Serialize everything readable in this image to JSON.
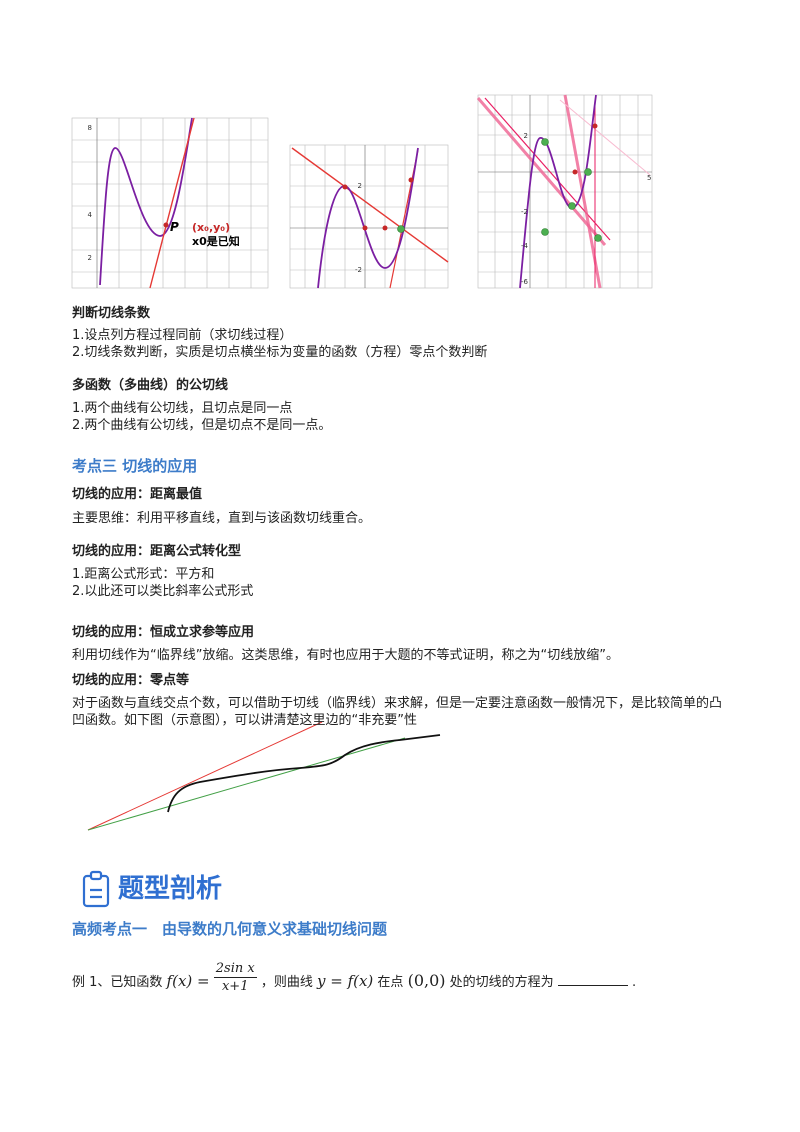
{
  "figures": {
    "fig1": {
      "ticks": [
        "8",
        "4",
        "2"
      ],
      "point": "P",
      "coord": "(x₀,y₀)",
      "note": "x0是已知"
    },
    "fig2": {
      "ticks": [
        "2",
        "-2"
      ]
    },
    "fig3": {
      "ticks": [
        "2",
        "-2",
        "-4",
        "-6",
        "5"
      ]
    }
  },
  "blocks": [
    {
      "heading": "判断切线条数",
      "lines": [
        "1.设点列方程过程同前（求切线过程）",
        "2.切线条数判断，实质是切点横坐标为变量的函数（方程）零点个数判断"
      ]
    },
    {
      "heading": "多函数（多曲线）的公切线",
      "lines": [
        "1.两个曲线有公切线，且切点是同一点",
        "2.两个曲线有公切线，但是切点不是同一点。"
      ]
    }
  ],
  "section": "考点三 切线的应用",
  "apps": [
    {
      "heading": "切线的应用：距离最值",
      "lines": [
        "主要思维：利用平移直线，直到与该函数切线重合。"
      ]
    },
    {
      "heading": "切线的应用：距离公式转化型",
      "lines": [
        "1.距离公式形式：平方和",
        "2.以此还可以类比斜率公式形式"
      ]
    },
    {
      "heading": "切线的应用：恒成立求参等应用",
      "lines": [
        "利用切线作为“临界线”放缩。这类思维，有时也应用于大题的不等式证明，称之为“切线放缩”。"
      ]
    },
    {
      "heading": "切线的应用：零点等",
      "lines": [
        "对于函数与直线交点个数，可以借助于切线（临界线）来求解，但是一定要注意函数一般情况下，是比较简单的凸凹函数。如下图（示意图），可以讲清楚这里边的“非充要”性"
      ]
    }
  ],
  "part_title": "题型剖析",
  "topic": "高频考点一　由导数的几何意义求基础切线问题",
  "example": {
    "prefix": "例 1、已知函数",
    "fx": "f(x) =",
    "num": "2sin x",
    "den": "x+1",
    "mid1": "，则曲线",
    "curve": "y = f(x)",
    "mid2": "在点",
    "point": "(0,0)",
    "suffix": "处的切线的方程为",
    "end": "."
  }
}
